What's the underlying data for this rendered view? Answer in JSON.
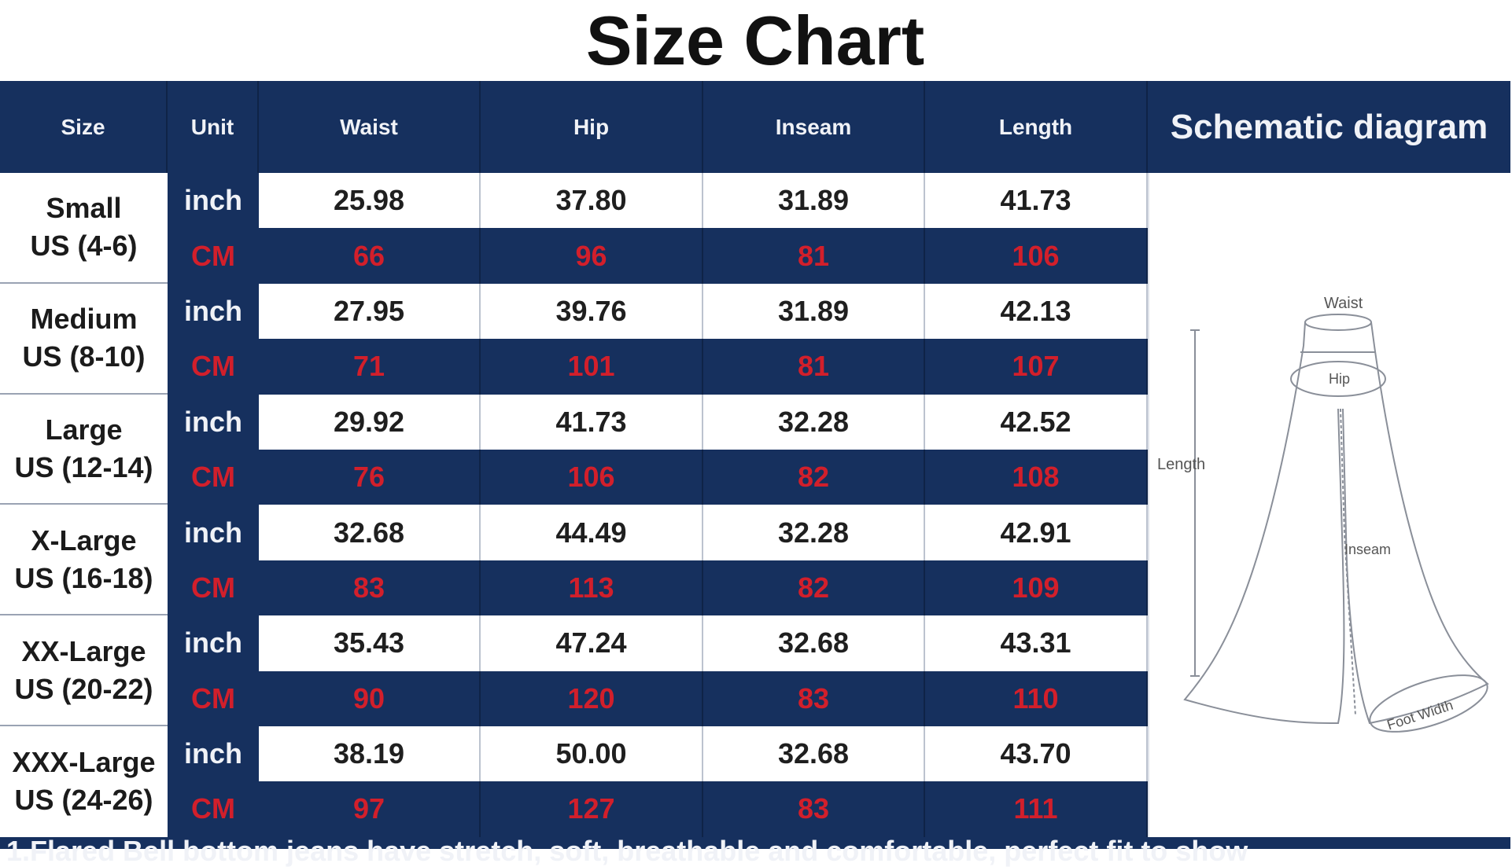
{
  "title": "Size Chart",
  "headers": {
    "size": "Size",
    "unit": "Unit",
    "waist": "Waist",
    "hip": "Hip",
    "inseam": "Inseam",
    "length": "Length",
    "schematic": "Schematic diagram"
  },
  "rows": [
    {
      "size": "Small",
      "us": "US (4-6)",
      "inch": {
        "unit": "inch",
        "waist": "25.98",
        "hip": "37.80",
        "inseam": "31.89",
        "length": "41.73"
      },
      "cm": {
        "unit": "CM",
        "waist": "66",
        "hip": "96",
        "inseam": "81",
        "length": "106"
      }
    },
    {
      "size": "Medium",
      "us": "US (8-10)",
      "inch": {
        "unit": "inch",
        "waist": "27.95",
        "hip": "39.76",
        "inseam": "31.89",
        "length": "42.13"
      },
      "cm": {
        "unit": "CM",
        "waist": "71",
        "hip": "101",
        "inseam": "81",
        "length": "107"
      }
    },
    {
      "size": "Large",
      "us": "US (12-14)",
      "inch": {
        "unit": "inch",
        "waist": "29.92",
        "hip": "41.73",
        "inseam": "32.28",
        "length": "42.52"
      },
      "cm": {
        "unit": "CM",
        "waist": "76",
        "hip": "106",
        "inseam": "82",
        "length": "108"
      }
    },
    {
      "size": "X-Large",
      "us": "US (16-18)",
      "inch": {
        "unit": "inch",
        "waist": "32.68",
        "hip": "44.49",
        "inseam": "32.28",
        "length": "42.91"
      },
      "cm": {
        "unit": "CM",
        "waist": "83",
        "hip": "113",
        "inseam": "82",
        "length": "109"
      }
    },
    {
      "size": "XX-Large",
      "us": "US (20-22)",
      "inch": {
        "unit": "inch",
        "waist": "35.43",
        "hip": "47.24",
        "inseam": "32.68",
        "length": "43.31"
      },
      "cm": {
        "unit": "CM",
        "waist": "90",
        "hip": "120",
        "inseam": "83",
        "length": "110"
      }
    },
    {
      "size": "XXX-Large",
      "us": "US (24-26)",
      "inch": {
        "unit": "inch",
        "waist": "38.19",
        "hip": "50.00",
        "inseam": "32.68",
        "length": "43.70"
      },
      "cm": {
        "unit": "CM",
        "waist": "97",
        "hip": "127",
        "inseam": "83",
        "length": "111"
      }
    }
  ],
  "diagram": {
    "waist": "Waist",
    "hip": "Hip",
    "length": "Length",
    "inseam": "Inseam",
    "foot_width": "Foot Width"
  },
  "footer": "1.Flared Bell bottom jeans have stretch, soft, breathable and comfortable, perfect fit to show",
  "colors": {
    "navy": "#16305e",
    "red": "#d21f2b",
    "white": "#ffffff"
  }
}
